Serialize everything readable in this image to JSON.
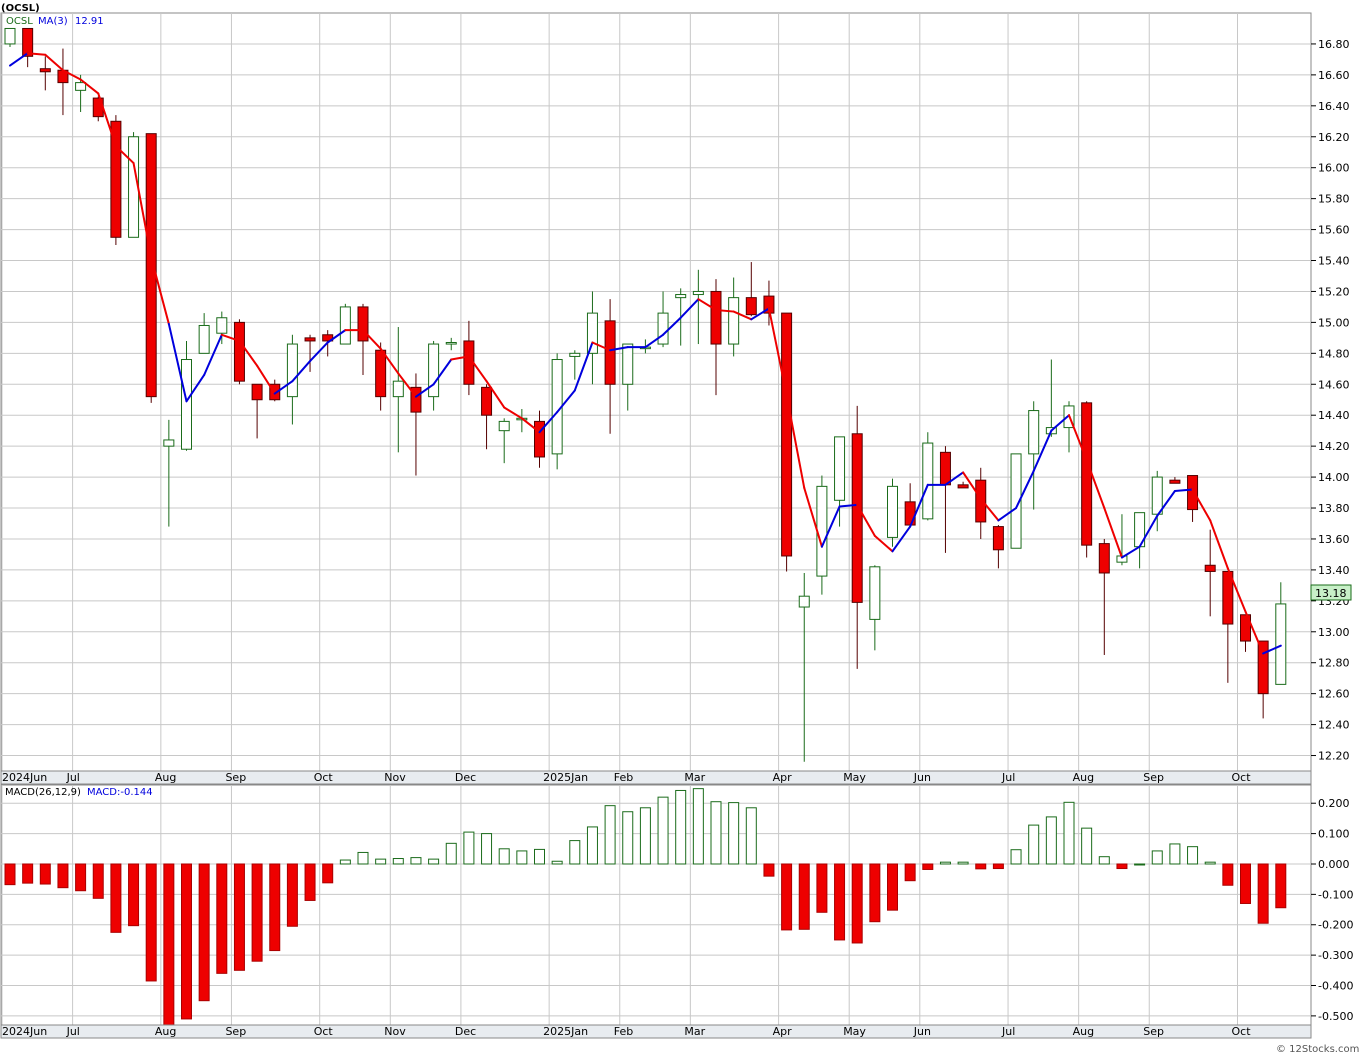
{
  "header": {
    "symbol_title": "(OCSL)",
    "legend_symbol": "OCSL",
    "legend_ma_label": "MA(3)",
    "legend_ma_value": "12.91",
    "macd_label": "MACD(26,12,9)",
    "macd_value_label": "MACD:-0.144",
    "last_price_tag": "13.18",
    "footer_credit": "© 12Stocks.com"
  },
  "colors": {
    "up_candle_stroke": "#1a6b1a",
    "down_candle_fill": "#ee0000",
    "ma_up": "#0000dd",
    "ma_down": "#ee0000",
    "grid": "#c8c8c8",
    "price_tag_bg": "#c8f0c8"
  },
  "chart_data": [
    {
      "type": "candlestick",
      "title": "",
      "period": "weekly",
      "price_ylim": [
        12.1,
        17.0
      ],
      "price_ticks": [
        "16.80",
        "16.60",
        "16.40",
        "16.20",
        "16.00",
        "15.80",
        "15.60",
        "15.40",
        "15.20",
        "15.00",
        "14.80",
        "14.60",
        "14.40",
        "14.20",
        "14.00",
        "13.80",
        "13.60",
        "13.40",
        "13.20",
        "13.00",
        "12.80",
        "12.60",
        "12.40",
        "12.20"
      ],
      "x_tick_labels": [
        {
          "label": "2024Jun",
          "week": 0
        },
        {
          "label": "Jul",
          "week": 4
        },
        {
          "label": "Aug",
          "week": 9
        },
        {
          "label": "Sep",
          "week": 13
        },
        {
          "label": "Oct",
          "week": 18
        },
        {
          "label": "Nov",
          "week": 22
        },
        {
          "label": "Dec",
          "week": 26
        },
        {
          "label": "2025Jan",
          "week": 31
        },
        {
          "label": "Feb",
          "week": 35
        },
        {
          "label": "Mar",
          "week": 39
        },
        {
          "label": "Apr",
          "week": 44
        },
        {
          "label": "May",
          "week": 48
        },
        {
          "label": "Jun",
          "week": 52
        },
        {
          "label": "Jul",
          "week": 57
        },
        {
          "label": "Aug",
          "week": 61
        },
        {
          "label": "Sep",
          "week": 65
        },
        {
          "label": "Oct",
          "week": 70
        }
      ],
      "ohlc": [
        [
          16.8,
          16.88,
          16.78,
          16.9
        ],
        [
          16.9,
          16.9,
          16.65,
          16.72
        ],
        [
          16.64,
          16.72,
          16.5,
          16.62
        ],
        [
          16.63,
          16.77,
          16.34,
          16.55
        ],
        [
          16.5,
          16.6,
          16.36,
          16.55
        ],
        [
          16.45,
          16.46,
          16.3,
          16.33
        ],
        [
          16.3,
          16.34,
          15.5,
          15.55
        ],
        [
          15.55,
          16.23,
          15.55,
          16.2
        ],
        [
          16.22,
          16.22,
          14.48,
          14.52
        ],
        [
          14.2,
          14.37,
          13.68,
          14.24
        ],
        [
          14.18,
          14.88,
          14.17,
          14.76
        ],
        [
          14.8,
          15.06,
          14.8,
          14.98
        ],
        [
          14.93,
          15.07,
          14.86,
          15.03
        ],
        [
          15.0,
          15.02,
          14.6,
          14.62
        ],
        [
          14.6,
          14.6,
          14.25,
          14.5
        ],
        [
          14.6,
          14.63,
          14.49,
          14.5
        ],
        [
          14.52,
          14.92,
          14.34,
          14.86
        ],
        [
          14.9,
          14.92,
          14.68,
          14.88
        ],
        [
          14.92,
          14.95,
          14.78,
          14.88
        ],
        [
          14.86,
          15.12,
          14.86,
          15.1
        ],
        [
          15.1,
          15.12,
          14.66,
          14.88
        ],
        [
          14.82,
          14.87,
          14.43,
          14.52
        ],
        [
          14.52,
          14.97,
          14.16,
          14.62
        ],
        [
          14.58,
          14.67,
          14.01,
          14.42
        ],
        [
          14.52,
          14.88,
          14.43,
          14.86
        ],
        [
          14.86,
          14.9,
          14.82,
          14.87
        ],
        [
          14.88,
          15.01,
          14.53,
          14.6
        ],
        [
          14.58,
          14.6,
          14.18,
          14.4
        ],
        [
          14.3,
          14.38,
          14.09,
          14.36
        ],
        [
          14.38,
          14.44,
          14.29,
          14.38
        ],
        [
          14.36,
          14.43,
          14.06,
          14.13
        ],
        [
          14.15,
          14.8,
          14.05,
          14.76
        ],
        [
          14.78,
          14.82,
          14.63,
          14.8
        ],
        [
          14.8,
          15.2,
          14.6,
          15.06
        ],
        [
          15.01,
          15.15,
          14.28,
          14.6
        ],
        [
          14.6,
          14.86,
          14.43,
          14.86
        ],
        [
          14.84,
          14.89,
          14.8,
          14.84
        ],
        [
          14.86,
          15.2,
          14.84,
          15.06
        ],
        [
          15.16,
          15.22,
          14.85,
          15.18
        ],
        [
          15.18,
          15.34,
          14.86,
          15.2
        ],
        [
          15.2,
          15.28,
          14.53,
          14.86
        ],
        [
          14.86,
          15.29,
          14.78,
          15.16
        ],
        [
          15.16,
          15.39,
          15.04,
          15.05
        ],
        [
          15.17,
          15.27,
          14.98,
          15.06
        ],
        [
          15.06,
          15.06,
          13.39,
          13.49
        ],
        [
          13.16,
          13.38,
          12.16,
          13.23
        ],
        [
          13.36,
          14.01,
          13.24,
          13.94
        ],
        [
          13.85,
          14.26,
          13.68,
          14.26
        ],
        [
          14.28,
          14.46,
          12.76,
          13.19
        ],
        [
          13.08,
          13.43,
          12.88,
          13.42
        ],
        [
          13.61,
          13.99,
          13.55,
          13.94
        ],
        [
          13.84,
          13.96,
          13.68,
          13.69
        ],
        [
          13.73,
          14.29,
          13.72,
          14.22
        ],
        [
          14.16,
          14.2,
          13.51,
          13.95
        ],
        [
          13.95,
          13.97,
          13.93,
          13.93
        ],
        [
          13.98,
          14.06,
          13.6,
          13.71
        ],
        [
          13.68,
          13.69,
          13.41,
          13.53
        ],
        [
          13.54,
          14.14,
          13.54,
          14.15
        ],
        [
          14.15,
          14.49,
          13.79,
          14.43
        ],
        [
          14.28,
          14.76,
          14.26,
          14.32
        ],
        [
          14.32,
          14.49,
          14.16,
          14.46
        ],
        [
          14.48,
          14.49,
          13.48,
          13.56
        ],
        [
          13.57,
          13.6,
          12.85,
          13.38
        ],
        [
          13.45,
          13.76,
          13.43,
          13.49
        ],
        [
          13.55,
          13.77,
          13.41,
          13.77
        ],
        [
          13.76,
          14.04,
          13.65,
          14.0
        ],
        [
          13.98,
          14.0,
          13.96,
          13.96
        ],
        [
          14.01,
          14.01,
          13.71,
          13.79
        ],
        [
          13.43,
          13.66,
          13.1,
          13.39
        ],
        [
          13.39,
          13.39,
          12.67,
          13.05
        ],
        [
          13.11,
          13.11,
          12.87,
          12.94
        ],
        [
          12.94,
          12.94,
          12.44,
          12.6
        ],
        [
          12.66,
          13.32,
          12.66,
          13.18
        ]
      ],
      "ma3": [
        16.66,
        16.74,
        16.73,
        16.63,
        16.57,
        16.48,
        16.14,
        16.03,
        15.42,
        14.99,
        14.49,
        14.66,
        14.92,
        14.88,
        14.72,
        14.54,
        14.62,
        14.75,
        14.87,
        14.95,
        14.95,
        14.83,
        14.67,
        14.52,
        14.6,
        14.76,
        14.78,
        14.62,
        14.45,
        14.38,
        14.29,
        14.42,
        14.56,
        14.87,
        14.82,
        14.84,
        14.84,
        14.92,
        15.03,
        15.15,
        15.08,
        15.07,
        15.02,
        15.09,
        14.53,
        13.93,
        13.55,
        13.81,
        13.82,
        13.62,
        13.52,
        13.68,
        13.95,
        13.95,
        14.03,
        13.86,
        13.72,
        13.8,
        14.04,
        14.3,
        14.4,
        14.11,
        13.8,
        13.48,
        13.55,
        13.75,
        13.91,
        13.92,
        13.72,
        13.41,
        13.13,
        12.86,
        12.91
      ],
      "ma_colors": [
        "u",
        "u",
        "d",
        "d",
        "d",
        "d",
        "d",
        "d",
        "d",
        "d",
        "u",
        "u",
        "u",
        "d",
        "d",
        "d",
        "u",
        "u",
        "u",
        "u",
        "d",
        "d",
        "d",
        "d",
        "u",
        "u",
        "d",
        "d",
        "d",
        "d",
        "d",
        "u",
        "u",
        "u",
        "d",
        "u",
        "u",
        "u",
        "u",
        "u",
        "d",
        "d",
        "d",
        "u",
        "d",
        "d",
        "d",
        "u",
        "u",
        "d",
        "d",
        "u",
        "u",
        "u",
        "u",
        "d",
        "d",
        "u",
        "u",
        "u",
        "u",
        "d",
        "d",
        "d",
        "u",
        "u",
        "u",
        "u",
        "d",
        "d",
        "d",
        "d",
        "u"
      ]
    },
    {
      "type": "bar",
      "title": "MACD(26,12,9)",
      "ylim": [
        -0.53,
        0.26
      ],
      "ticks": [
        "0.200",
        "0.100",
        "0.000",
        "-0.100",
        "-0.200",
        "-0.300",
        "-0.400",
        "-0.500"
      ],
      "values": [
        -0.068,
        -0.063,
        -0.066,
        -0.078,
        -0.088,
        -0.113,
        -0.225,
        -0.203,
        -0.385,
        -0.53,
        -0.51,
        -0.45,
        -0.36,
        -0.35,
        -0.32,
        -0.285,
        -0.205,
        -0.12,
        -0.062,
        0.013,
        0.038,
        0.016,
        0.018,
        0.021,
        0.016,
        0.068,
        0.105,
        0.1,
        0.05,
        0.043,
        0.048,
        0.009,
        0.077,
        0.122,
        0.192,
        0.172,
        0.185,
        0.22,
        0.242,
        0.248,
        0.205,
        0.202,
        0.185,
        -0.04,
        -0.217,
        -0.215,
        -0.159,
        -0.25,
        -0.26,
        -0.19,
        -0.152,
        -0.055,
        -0.018,
        0.006,
        0.006,
        -0.016,
        -0.015,
        0.047,
        0.128,
        0.155,
        0.203,
        0.118,
        0.024,
        -0.015,
        0.0,
        0.043,
        0.066,
        0.057,
        0.006,
        -0.07,
        -0.13,
        -0.195,
        -0.144
      ]
    }
  ]
}
